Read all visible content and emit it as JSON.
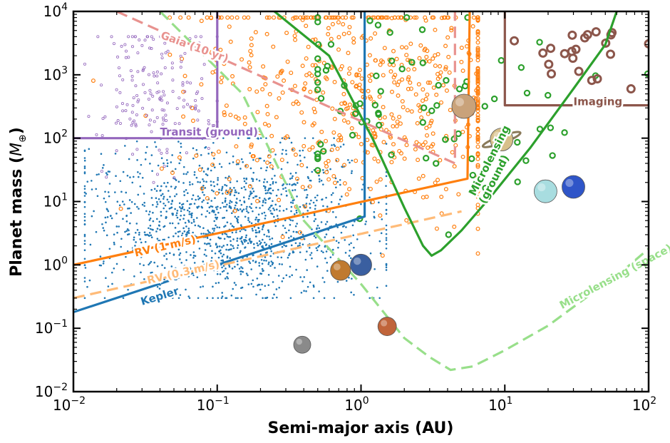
{
  "chart_data": {
    "type": "scatter",
    "title": "",
    "xlabel": "Semi-major axis (AU)",
    "ylabel_main": "Planet mass (",
    "ylabel_sym": "M",
    "ylabel_sub": "⊕",
    "ylabel_end": ")",
    "xscale": "log",
    "yscale": "log",
    "xlim": [
      0.01,
      100
    ],
    "ylim": [
      0.01,
      10000
    ],
    "x_ticks": [
      {
        "value": 0.01,
        "base": "10",
        "exp": "−2"
      },
      {
        "value": 0.1,
        "base": "10",
        "exp": "−1"
      },
      {
        "value": 1,
        "base": "10",
        "exp": "0"
      },
      {
        "value": 10,
        "base": "10",
        "exp": "1"
      },
      {
        "value": 100,
        "base": "10",
        "exp": "2"
      }
    ],
    "y_ticks": [
      {
        "value": 0.01,
        "base": "10",
        "exp": "−2"
      },
      {
        "value": 0.1,
        "base": "10",
        "exp": "−1"
      },
      {
        "value": 1,
        "base": "10",
        "exp": "0"
      },
      {
        "value": 10,
        "base": "10",
        "exp": "1"
      },
      {
        "value": 100,
        "base": "10",
        "exp": "2"
      },
      {
        "value": 1000,
        "base": "10",
        "exp": "3"
      },
      {
        "value": 10000,
        "base": "10",
        "exp": "4"
      }
    ],
    "grid": false,
    "colors": {
      "kepler": "#1f77b4",
      "rv": "#ff7f0e",
      "rv_light": "#ffbb78",
      "microlensing": "#2ca02c",
      "microlensing_space": "#98df8a",
      "transit": "#9467bd",
      "gaia": "#e8928f",
      "imaging": "#8c564b"
    },
    "curves": [
      {
        "name": "Kepler",
        "color": "#1f77b4",
        "dash": false,
        "points": [
          [
            0.01,
            0.18
          ],
          [
            1.06,
            5.8
          ],
          [
            1.06,
            10000
          ]
        ]
      },
      {
        "name": "RV (1 m/s)",
        "color": "#ff7f0e",
        "dash": false,
        "points": [
          [
            0.01,
            1.0
          ],
          [
            5.5,
            23
          ],
          [
            5.7,
            10000
          ]
        ]
      },
      {
        "name": "RV (0.3 m/s)",
        "color": "#ffbb78",
        "dash": true,
        "points": [
          [
            0.01,
            0.3
          ],
          [
            5.0,
            7.0
          ]
        ]
      },
      {
        "name": "Transit (ground)",
        "color": "#9467bd",
        "dash": false,
        "points": [
          [
            0.01,
            100
          ],
          [
            0.1,
            100
          ],
          [
            0.1,
            10000
          ]
        ]
      },
      {
        "name": "Gaia (10 yr)",
        "color": "#e8928f",
        "dash": true,
        "points": [
          [
            0.02,
            10000
          ],
          [
            4.5,
            40
          ],
          [
            4.5,
            10000
          ]
        ]
      },
      {
        "name": "Imaging",
        "color": "#8c564b",
        "dash": false,
        "points": [
          [
            10,
            10000
          ],
          [
            10,
            330
          ],
          [
            100,
            330
          ]
        ]
      },
      {
        "name": "Microlensing (ground)",
        "color": "#2ca02c",
        "dash": false,
        "points": [
          [
            0.25,
            10000
          ],
          [
            0.6,
            2000
          ],
          [
            1.2,
            100
          ],
          [
            2.0,
            8
          ],
          [
            2.7,
            2.0
          ],
          [
            3.1,
            1.4
          ],
          [
            3.6,
            1.7
          ],
          [
            5,
            3.5
          ],
          [
            8,
            12
          ],
          [
            15,
            70
          ],
          [
            30,
            600
          ],
          [
            50,
            3000
          ],
          [
            60,
            10000
          ]
        ]
      },
      {
        "name": "Microlensing (space)",
        "color": "#98df8a",
        "dash": true,
        "points": [
          [
            0.04,
            10000
          ],
          [
            0.15,
            500
          ],
          [
            0.4,
            5.0
          ],
          [
            1.0,
            0.5
          ],
          [
            2.0,
            0.07
          ],
          [
            3.0,
            0.035
          ],
          [
            4.2,
            0.022
          ],
          [
            6.0,
            0.025
          ],
          [
            10,
            0.045
          ],
          [
            20,
            0.11
          ],
          [
            40,
            0.35
          ],
          [
            70,
            0.9
          ],
          [
            100,
            1.8
          ]
        ]
      }
    ],
    "curve_labels": [
      {
        "text": "Gaia (10 yr)",
        "color": "#e8928f",
        "x": 0.04,
        "y": 3800,
        "rot": 20
      },
      {
        "text": "Transit (ground)",
        "color": "#9467bd",
        "x": 0.04,
        "y": 110,
        "rot": 0
      },
      {
        "text": "Imaging",
        "color": "#8c564b",
        "x": 30,
        "y": 330,
        "rot": 0
      },
      {
        "text": "RV (1 m/s)",
        "color": "#ff7f0e",
        "x": 0.027,
        "y": 1.35,
        "rot": -13
      },
      {
        "text": "RV (0.3 m/s)",
        "color": "#ffbb78",
        "x": 0.033,
        "y": 0.5,
        "rot": -13
      },
      {
        "text": "Kepler",
        "color": "#1f77b4",
        "x": 0.03,
        "y": 0.23,
        "rot": -17
      },
      {
        "text": "Microlensing",
        "color": "#2ca02c",
        "x": 6.2,
        "y": 12,
        "rot": -63
      },
      {
        "text": "(ground)",
        "color": "#2ca02c",
        "x": 7.3,
        "y": 9,
        "rot": -63
      },
      {
        "text": "Microlensing (space)",
        "color": "#98df8a",
        "x": 25,
        "y": 0.2,
        "rot": -28
      }
    ],
    "series": [
      {
        "name": "Kepler",
        "marker": "dot",
        "color": "#1f77b4",
        "count": 1400,
        "x_range": [
          0.012,
          1.5
        ],
        "y_range": [
          0.3,
          100
        ],
        "center": [
          0.12,
          5.0
        ]
      },
      {
        "name": "RV",
        "marker": "small-circle",
        "color": "#ff7f0e",
        "count": 650,
        "x_range": [
          0.01,
          6.5
        ],
        "y_range": [
          1.0,
          8000
        ],
        "center": [
          1.5,
          600
        ]
      },
      {
        "name": "Microlensing",
        "marker": "circle",
        "color": "#2ca02c",
        "count": 80,
        "x_range": [
          0.5,
          100
        ],
        "y_range": [
          3,
          8000
        ],
        "center": [
          2.5,
          400
        ]
      },
      {
        "name": "Transit (ground)",
        "marker": "tiny-circle",
        "color": "#9467bd",
        "count": 180,
        "x_range": [
          0.012,
          0.1
        ],
        "y_range": [
          20,
          4000
        ],
        "center": [
          0.04,
          500
        ]
      },
      {
        "name": "Imaging",
        "marker": "big-circle",
        "color": "#8c564b",
        "count": 22,
        "x_range": [
          10,
          100
        ],
        "y_range": [
          600,
          9000
        ],
        "center": [
          35,
          2500
        ]
      }
    ],
    "planets": [
      {
        "name": "Mercury",
        "x": 0.39,
        "y": 0.055,
        "color": "#8a8a8a"
      },
      {
        "name": "Venus",
        "x": 0.72,
        "y": 0.82,
        "color": "#c07a30"
      },
      {
        "name": "Earth",
        "x": 1.0,
        "y": 1.0,
        "color": "#3a5fa0"
      },
      {
        "name": "Mars",
        "x": 1.52,
        "y": 0.107,
        "color": "#c0643a"
      },
      {
        "name": "Jupiter",
        "x": 5.2,
        "y": 318,
        "color": "#c9a27a"
      },
      {
        "name": "Saturn",
        "x": 9.5,
        "y": 95,
        "color": "#d8c08a"
      },
      {
        "name": "Uranus",
        "x": 19.2,
        "y": 14.5,
        "color": "#a8dde0"
      },
      {
        "name": "Neptune",
        "x": 30,
        "y": 17,
        "color": "#2f55c8"
      }
    ]
  }
}
